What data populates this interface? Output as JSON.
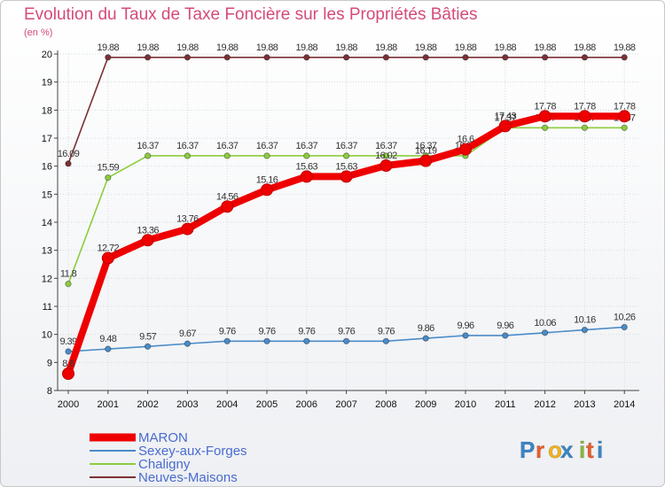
{
  "chart_data": {
    "type": "line",
    "title": "Evolution du Taux de Taxe Foncière sur les Propriétés Bâties",
    "subtitle": "(en %)",
    "xlabel": "",
    "ylabel": "",
    "ylim": [
      8,
      20
    ],
    "yticks": [
      "8",
      "9",
      "10",
      "11",
      "12",
      "13",
      "14",
      "15",
      "16",
      "17",
      "18",
      "19",
      "20"
    ],
    "categories": [
      "2000",
      "2001",
      "2002",
      "2003",
      "2004",
      "2005",
      "2006",
      "2007",
      "2008",
      "2009",
      "2010",
      "2011",
      "2012",
      "2013",
      "2014"
    ],
    "grid": true,
    "legend_position": "bottom-left",
    "series": [
      {
        "name": "Neuves-Maisons",
        "color": "#7b3136",
        "values": [
          16.09,
          19.88,
          19.88,
          19.88,
          19.88,
          19.88,
          19.88,
          19.88,
          19.88,
          19.88,
          19.88,
          19.88,
          19.88,
          19.88,
          19.88
        ],
        "labels": [
          "16.09",
          "19.88",
          "19.88",
          "19.88",
          "19.88",
          "19.88",
          "19.88",
          "19.88",
          "19.88",
          "19.88",
          "19.88",
          "19.88",
          "19.88",
          "19.88",
          "19.88"
        ]
      },
      {
        "name": "Chaligny",
        "color": "#8ccc3e",
        "values": [
          11.8,
          15.59,
          16.37,
          16.37,
          16.37,
          16.37,
          16.37,
          16.37,
          16.37,
          16.37,
          16.37,
          17.37,
          17.37,
          17.37,
          17.37
        ],
        "labels": [
          "11.8",
          "15.59",
          "16.37",
          "16.37",
          "16.37",
          "16.37",
          "16.37",
          "16.37",
          "16.37",
          "16.37",
          "16.37",
          "17.37",
          "17.37",
          "17.37",
          "17.37"
        ]
      },
      {
        "name": "Sexey-aux-Forges",
        "color": "#4a8cc8",
        "values": [
          9.39,
          9.48,
          9.57,
          9.67,
          9.76,
          9.76,
          9.76,
          9.76,
          9.76,
          9.86,
          9.96,
          9.96,
          10.06,
          10.16,
          10.26
        ],
        "labels": [
          "9.39",
          "9.48",
          "9.57",
          "9.67",
          "9.76",
          "9.76",
          "9.76",
          "9.76",
          "9.76",
          "9.86",
          "9.96",
          "9.96",
          "10.06",
          "10.16",
          "10.26"
        ]
      },
      {
        "name": "MARON",
        "color": "#ee0000",
        "values": [
          8.6,
          12.72,
          13.36,
          13.76,
          14.56,
          15.16,
          15.63,
          15.63,
          16.02,
          16.19,
          16.6,
          17.43,
          17.78,
          17.78,
          17.78
        ],
        "labels": [
          "8.6",
          "12.72",
          "13.36",
          "13.76",
          "14.56",
          "15.16",
          "15.63",
          "15.63",
          "16.02",
          "16.19",
          "16.6",
          "17.43",
          "17.78",
          "17.78",
          "17.78"
        ]
      }
    ],
    "legend": [
      "MARON",
      "Sexey-aux-Forges",
      "Chaligny",
      "Neuves-Maisons"
    ]
  },
  "brand": {
    "name": "Proxiti",
    "letters": [
      "P",
      "r",
      "o",
      "x",
      "i",
      "t",
      "i"
    ],
    "colors": [
      "#3a86c8",
      "#e85f2a",
      "#f2b21e",
      "#3a86c8",
      "#86b83a",
      "#e85f2a",
      "#3a86c8"
    ]
  }
}
